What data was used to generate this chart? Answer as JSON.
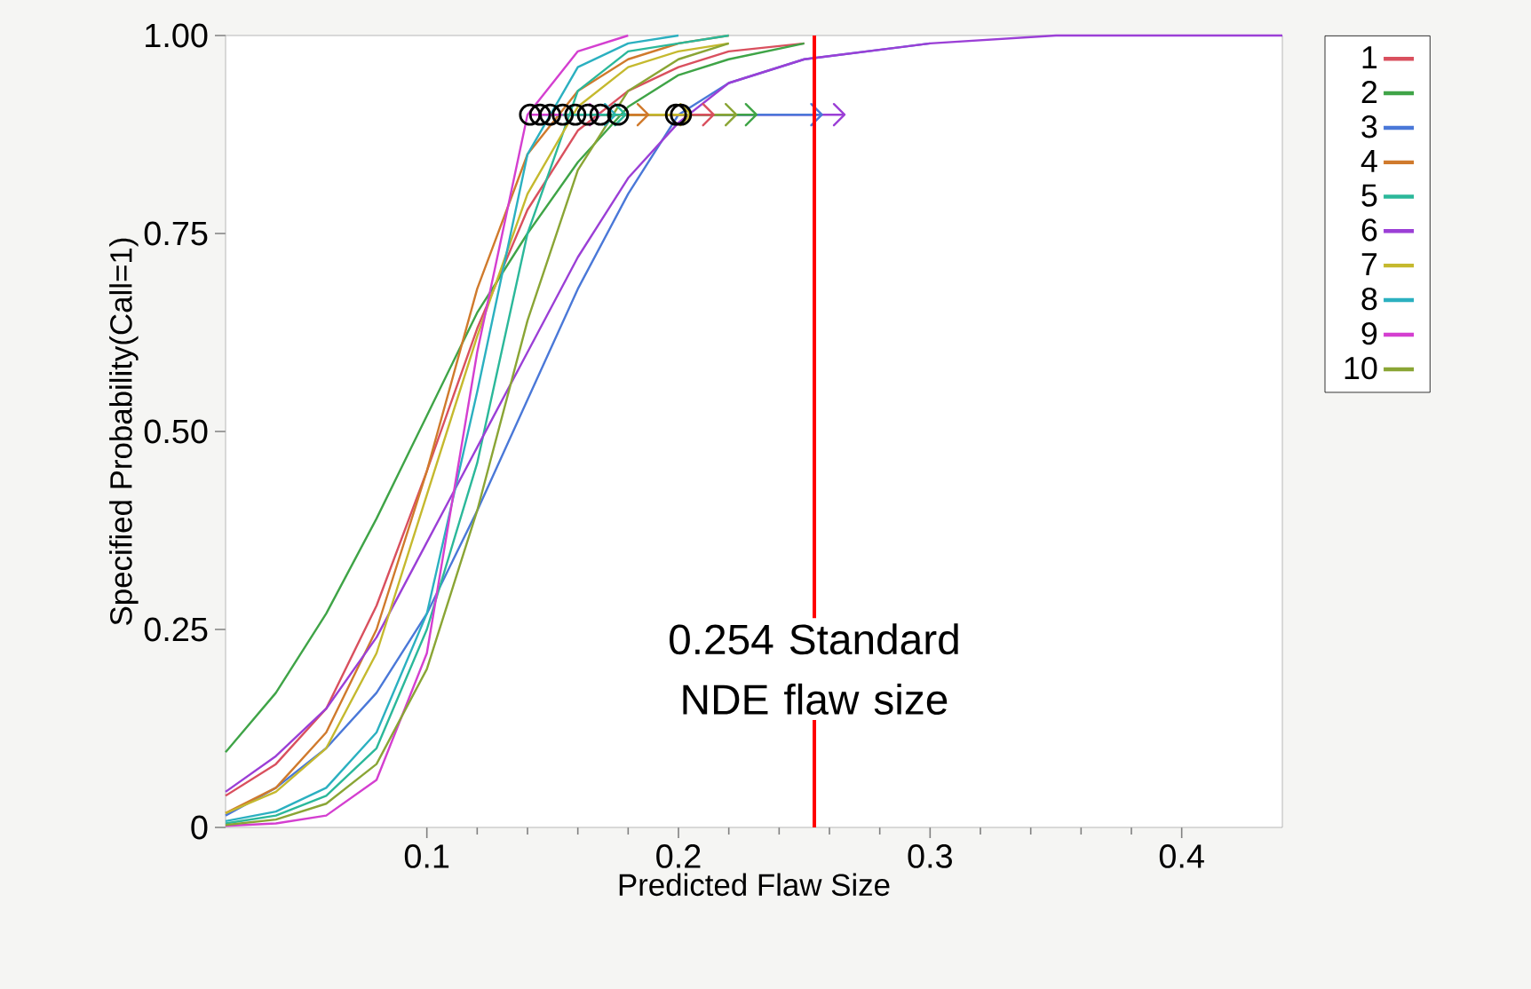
{
  "chart_data": {
    "type": "line",
    "xlabel": "Predicted Flaw Size",
    "ylabel": "Specified Probability(Call=1)",
    "x": [
      0.02,
      0.04,
      0.06,
      0.08,
      0.1,
      0.12,
      0.14,
      0.16,
      0.18,
      0.2,
      0.22,
      0.25,
      0.3,
      0.35,
      0.44
    ],
    "series": [
      {
        "name": "1",
        "color": "#d9505e",
        "values": [
          0.04,
          0.08,
          0.15,
          0.28,
          0.45,
          0.63,
          0.78,
          0.88,
          0.93,
          0.96,
          0.98,
          0.99,
          null,
          null,
          null
        ]
      },
      {
        "name": "2",
        "color": "#3fa447",
        "values": [
          0.095,
          0.17,
          0.27,
          0.39,
          0.52,
          0.65,
          0.75,
          0.84,
          0.91,
          0.95,
          0.97,
          0.99,
          null,
          null,
          null
        ]
      },
      {
        "name": "3",
        "color": "#4a78d8",
        "values": [
          0.015,
          0.05,
          0.1,
          0.17,
          0.27,
          0.4,
          0.54,
          0.68,
          0.8,
          0.9,
          0.94,
          0.97,
          0.99,
          null,
          null
        ]
      },
      {
        "name": "4",
        "color": "#d07a2c",
        "values": [
          0.018,
          0.05,
          0.12,
          0.25,
          0.45,
          0.68,
          0.85,
          0.93,
          0.97,
          0.99,
          1,
          null,
          null,
          null,
          null
        ]
      },
      {
        "name": "5",
        "color": "#2bb89a",
        "values": [
          0.005,
          0.015,
          0.04,
          0.1,
          0.25,
          0.46,
          0.75,
          0.93,
          0.98,
          0.99,
          1,
          null,
          null,
          null,
          null
        ]
      },
      {
        "name": "6",
        "color": "#9b3fd6",
        "values": [
          0.045,
          0.09,
          0.15,
          0.24,
          0.36,
          0.48,
          0.6,
          0.72,
          0.82,
          0.89,
          0.94,
          0.97,
          0.99,
          1,
          1
        ]
      },
      {
        "name": "7",
        "color": "#c5b92e",
        "values": [
          0.018,
          0.045,
          0.1,
          0.22,
          0.42,
          0.62,
          0.8,
          0.91,
          0.96,
          0.98,
          0.99,
          null,
          null,
          null,
          null
        ]
      },
      {
        "name": "8",
        "color": "#2bb0c0",
        "values": [
          0.008,
          0.02,
          0.05,
          0.12,
          0.27,
          0.55,
          0.85,
          0.96,
          0.99,
          1,
          null,
          null,
          null,
          null,
          null
        ]
      },
      {
        "name": "9",
        "color": "#d43fd0",
        "values": [
          0.002,
          0.005,
          0.015,
          0.06,
          0.22,
          0.6,
          0.9,
          0.98,
          1,
          null,
          null,
          null,
          null,
          null,
          null
        ]
      },
      {
        "name": "10",
        "color": "#8aa535",
        "values": [
          0.003,
          0.01,
          0.03,
          0.08,
          0.2,
          0.4,
          0.64,
          0.83,
          0.93,
          0.97,
          0.99,
          null,
          null,
          null,
          null
        ]
      },
      {
        "type": "scatter",
        "marker": "circle",
        "color": "#000000",
        "x": [
          0.164,
          0.176,
          0.199,
          0.149,
          0.154,
          0.201,
          0.159,
          0.145,
          0.141,
          0.169
        ],
        "values": [
          0.9,
          0.9,
          0.9,
          0.9,
          0.9,
          0.9,
          0.9,
          0.9,
          0.9,
          0.9
        ],
        "xerrors": [
          [
            0.164,
            0.214
          ],
          [
            0.176,
            0.231
          ],
          [
            0.199,
            0.257
          ],
          [
            0.149,
            0.188
          ],
          [
            0.154,
            0.179
          ],
          [
            0.201,
            0.266
          ],
          [
            0.159,
            0.205
          ],
          [
            0.145,
            0.175
          ],
          [
            0.141,
            0.169
          ],
          [
            0.169,
            0.223
          ]
        ]
      }
    ],
    "xlim": [
      0.02,
      0.44
    ],
    "ylim": [
      0,
      1
    ],
    "xticks": [
      0.1,
      0.2,
      0.3,
      0.4
    ],
    "yticks": [
      {
        "value": 0,
        "label": "0"
      },
      {
        "value": 0.25,
        "label": "0.25"
      },
      {
        "value": 0.5,
        "label": "0.50"
      },
      {
        "value": 0.75,
        "label": "0.75"
      },
      {
        "value": 1,
        "label": "1.00"
      }
    ],
    "ref_lines": [
      {
        "axis": "x",
        "value": 0.254,
        "label": "0.254 Standard NDE flaw size",
        "color": "#ff0000"
      }
    ],
    "grid": false,
    "legend": "right",
    "line_style": "solid"
  }
}
